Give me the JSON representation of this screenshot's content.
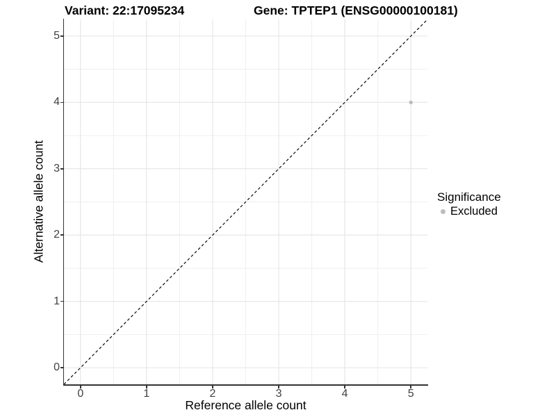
{
  "header": {
    "title_left": "Variant: 22:17095234",
    "title_right": "Gene: TPTEP1 (ENSG00000100181)"
  },
  "chart_data": {
    "type": "scatter",
    "xlabel": "Reference allele count",
    "ylabel": "Alternative allele count",
    "xlim": [
      -0.25,
      5.25
    ],
    "ylim": [
      -0.25,
      5.25
    ],
    "xticks": [
      0,
      1,
      2,
      3,
      4,
      5
    ],
    "yticks": [
      0,
      1,
      2,
      3,
      4,
      5
    ],
    "x_minor": [
      0.5,
      1.5,
      2.5,
      3.5,
      4.5
    ],
    "y_minor": [
      0.5,
      1.5,
      2.5,
      3.5,
      4.5
    ],
    "grid": "major+minor",
    "reference_line": {
      "type": "identity",
      "style": "dashed",
      "from": [
        -0.25,
        -0.25
      ],
      "to": [
        5.25,
        5.25
      ],
      "color": "#000000"
    },
    "points": [
      {
        "x": 5,
        "y": 4,
        "significance": "Excluded"
      }
    ],
    "point_radius": 2.7,
    "legend": {
      "position": "right",
      "title": "Significance",
      "entries": [
        {
          "label": "Excluded",
          "color": "#bdbdbd"
        }
      ]
    },
    "colors": {
      "point": "#bdbdbd",
      "grid_major": "#e4e4e4",
      "grid_minor": "#efefef",
      "axis_line": "#333333",
      "tick_label": "#404040",
      "text": "#000000",
      "background": "#ffffff"
    }
  }
}
